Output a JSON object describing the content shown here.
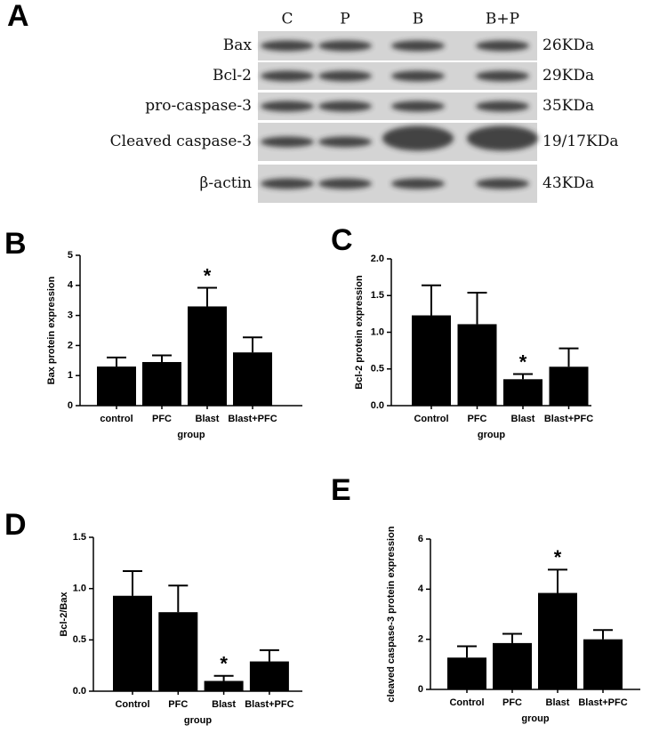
{
  "blot": {
    "label": "A",
    "lanes": [
      "C",
      "P",
      "B",
      "B+P"
    ],
    "proteins": [
      {
        "name": "Bax",
        "size": "26KDa"
      },
      {
        "name": "Bcl-2",
        "size": "29KDa"
      },
      {
        "name": "pro-caspase-3",
        "size": "35KDa"
      },
      {
        "name": "Cleaved caspase-3",
        "size": "19/17KDa"
      },
      {
        "name": "β-actin",
        "size": "43KDa"
      }
    ]
  },
  "chart_data": [
    {
      "type": "bar",
      "panel": "B",
      "ylabel": "Bax protein expression",
      "xlabel": "group",
      "color": "#000000",
      "categories": [
        "control",
        "PFC",
        "Blast",
        "Blast+PFC"
      ],
      "values": [
        1.3,
        1.45,
        3.3,
        1.77
      ],
      "errors": [
        0.3,
        0.22,
        0.62,
        0.5
      ],
      "annotation": {
        "text": "*",
        "category": "Blast"
      },
      "ylim": [
        0,
        5
      ],
      "yticks": [
        0,
        1,
        2,
        3,
        4,
        5
      ]
    },
    {
      "type": "bar",
      "panel": "C",
      "ylabel": "Bcl-2 protein expression",
      "xlabel": "group",
      "color": "#000000",
      "categories": [
        "Control",
        "PFC",
        "Blast",
        "Blast+PFC"
      ],
      "values": [
        1.23,
        1.11,
        0.36,
        0.53
      ],
      "errors": [
        0.41,
        0.43,
        0.07,
        0.25
      ],
      "annotation": {
        "text": "*",
        "category": "Blast"
      },
      "ylim": [
        0,
        2
      ],
      "yticks": [
        {
          "value": 0,
          "label": "0.0"
        },
        0.5,
        {
          "value": 1,
          "label": "1.0"
        },
        1.5,
        {
          "value": 2,
          "label": "2.0"
        }
      ]
    },
    {
      "type": "bar",
      "panel": "D",
      "ylabel": "Bcl-2/Bax",
      "xlabel": "group",
      "color": "#000000",
      "categories": [
        "Control",
        "PFC",
        "Blast",
        "Blast+PFC"
      ],
      "values": [
        0.93,
        0.77,
        0.1,
        0.29
      ],
      "errors": [
        0.24,
        0.26,
        0.05,
        0.11
      ],
      "annotation": {
        "text": "*",
        "category": "Blast"
      },
      "ylim": [
        0,
        1.5
      ],
      "yticks": [
        {
          "value": 0,
          "label": "0.0"
        },
        0.5,
        {
          "value": 1,
          "label": "1.0"
        },
        1.5
      ]
    },
    {
      "type": "bar",
      "panel": "E",
      "ylabel": "cleaved caspase-3 protein expression",
      "xlabel": "group",
      "color": "#000000",
      "categories": [
        "Control",
        "PFC",
        "Blast",
        "Blast+PFC"
      ],
      "values": [
        1.27,
        1.85,
        3.85,
        2.0
      ],
      "errors": [
        0.45,
        0.37,
        0.93,
        0.37
      ],
      "annotation": {
        "text": "*",
        "category": "Blast"
      },
      "ylim": [
        0,
        6
      ],
      "yticks": [
        0,
        2,
        4,
        6
      ]
    }
  ]
}
